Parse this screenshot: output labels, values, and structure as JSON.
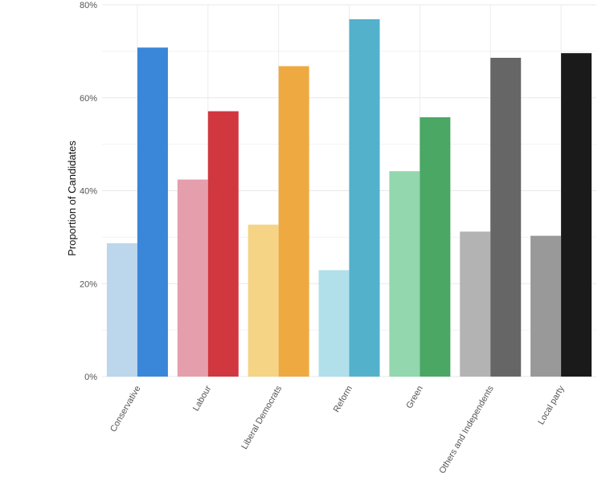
{
  "chart_data": {
    "type": "bar",
    "title": "",
    "xlabel": "",
    "ylabel": "Proportion of Candidates",
    "ylim": [
      0,
      80
    ],
    "yticks": [
      "0%",
      "20%",
      "40%",
      "60%",
      "80%"
    ],
    "grid": true,
    "legend": "none",
    "categories": [
      "Conservative",
      "Labour",
      "Liberal Democrats",
      "Reform",
      "Green",
      "Others and Independents",
      "Local party"
    ],
    "series": [
      {
        "values": [
          28.7,
          42.4,
          32.7,
          22.9,
          44.2,
          31.2,
          30.3
        ],
        "colors": [
          "#bcd6ec",
          "#e59fac",
          "#f6d485",
          "#b1e0ea",
          "#93d7ae",
          "#b3b3b3",
          "#999999"
        ]
      },
      {
        "values": [
          70.8,
          57.1,
          66.8,
          76.9,
          55.8,
          68.6,
          69.6
        ],
        "colors": [
          "#3a86d8",
          "#d1373f",
          "#efa941",
          "#53b1cc",
          "#4aa764",
          "#666666",
          "#1a1a1a"
        ]
      }
    ]
  }
}
